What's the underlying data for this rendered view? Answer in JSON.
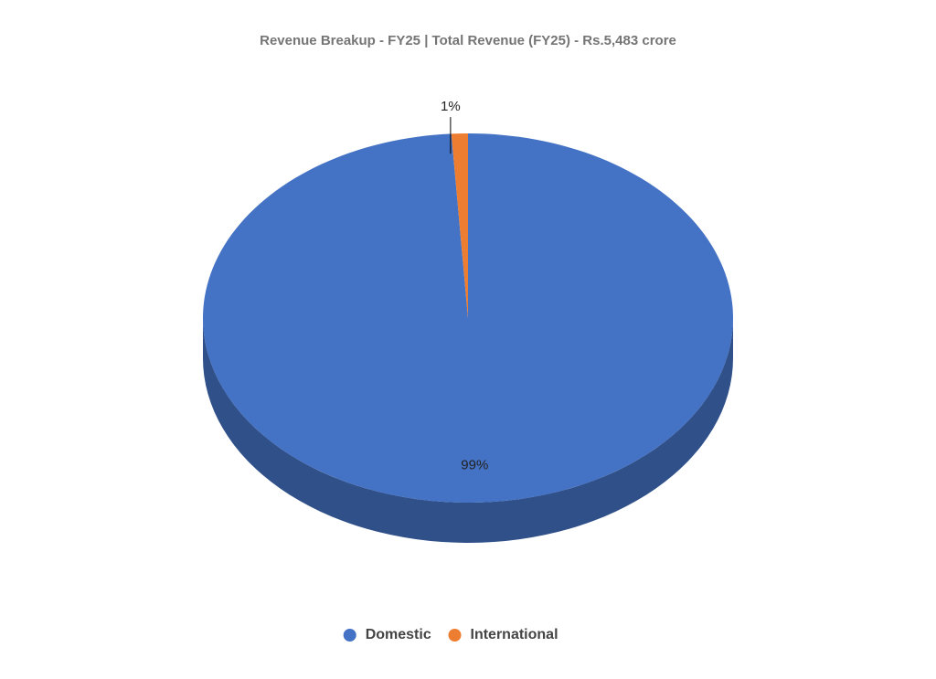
{
  "chart_data": {
    "type": "pie",
    "title": "Revenue Breakup - FY25 | Total Revenue (FY25) - Rs.5,483 crore",
    "categories": [
      "Domestic",
      "International"
    ],
    "values": [
      99,
      1
    ],
    "value_labels": [
      "99%",
      "1%"
    ],
    "colors": [
      "#4472c4",
      "#ed7d31"
    ],
    "legend": "bottom"
  }
}
